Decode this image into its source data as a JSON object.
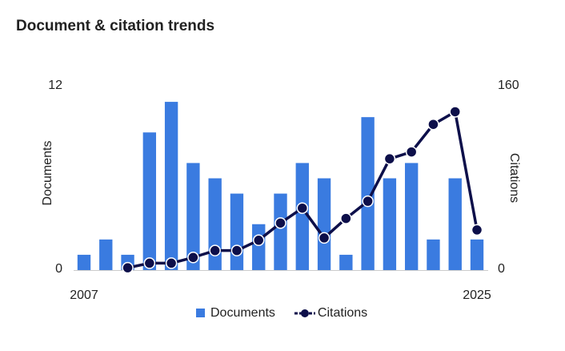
{
  "chart_data": {
    "type": "bar-line",
    "title": "Document & citation trends",
    "categories": [
      "2007",
      null,
      null,
      null,
      null,
      null,
      null,
      null,
      null,
      null,
      null,
      null,
      null,
      null,
      null,
      null,
      null,
      null,
      "2025"
    ],
    "series": [
      {
        "name": "Documents",
        "type": "bar",
        "color": "#3a7be0",
        "values": [
          1,
          2,
          1,
          9,
          11,
          7,
          6,
          5,
          3,
          5,
          7,
          6,
          1,
          10,
          6,
          7,
          2,
          6,
          2
        ]
      },
      {
        "name": "Citations",
        "type": "line",
        "axis": "y2",
        "color": "#0d0f4a",
        "values": [
          null,
          null,
          2,
          6,
          6,
          11,
          17,
          17,
          26,
          41,
          54,
          28,
          45,
          60,
          97,
          103,
          127,
          138,
          35
        ]
      }
    ],
    "ylabel": "Documents",
    "y2label": "Citations",
    "ylim": [
      0,
      12
    ],
    "yticks": [
      0,
      12
    ],
    "y2lim": [
      0,
      160
    ],
    "y2ticks": [
      0,
      160
    ],
    "legend": "bottom"
  }
}
